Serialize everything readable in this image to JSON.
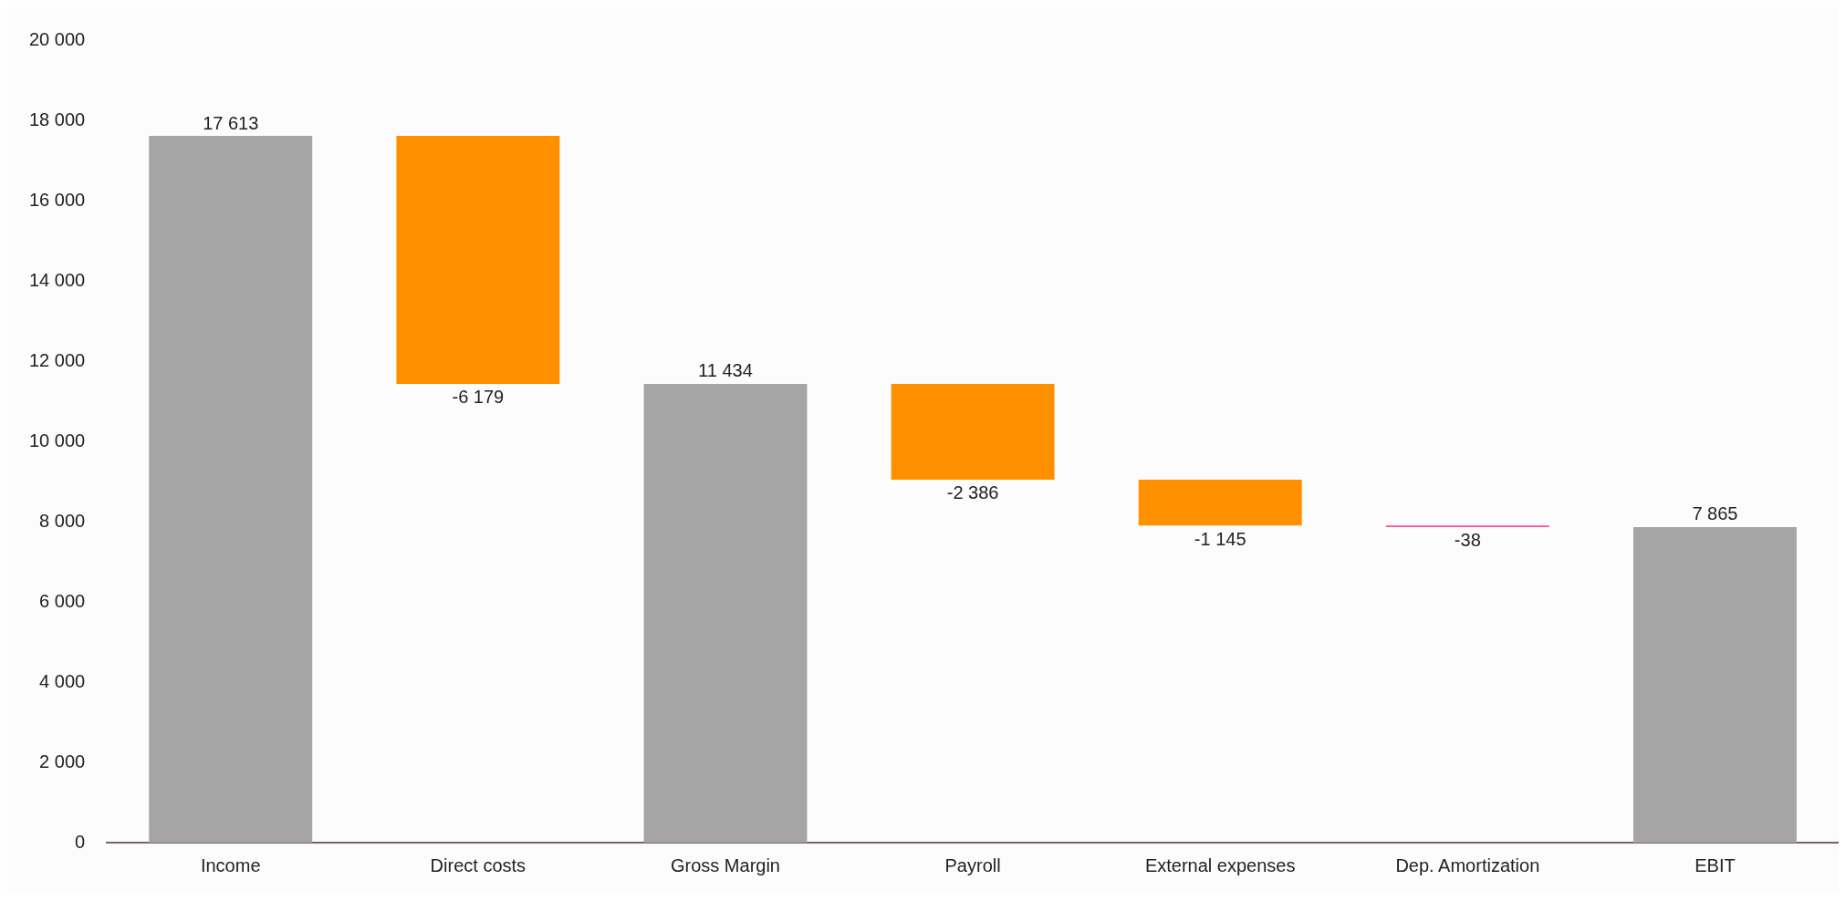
{
  "chart_data": {
    "type": "bar",
    "categories": [
      "Income",
      "Direct costs",
      "Gross Margin",
      "Payroll",
      "External expenses",
      "Dep. Amortization",
      "EBIT"
    ],
    "values": [
      17613,
      -6179,
      11434,
      -2386,
      -1145,
      -38,
      7865
    ],
    "base": [
      0,
      17613,
      0,
      11434,
      9048,
      7903,
      0
    ],
    "colors": [
      "#a5a5a5",
      "#ff9000",
      "#a5a5a5",
      "#ff9000",
      "#ff9000",
      "#ff4fa0",
      "#a5a5a5"
    ],
    "value_labels": [
      "17 613",
      "-6 179",
      "11 434",
      "-2 386",
      "-1 145",
      "-38",
      "7 865"
    ],
    "ylim": [
      0,
      20000
    ],
    "yticks": [
      0,
      {
        "value": 2000,
        "label": "2 000"
      },
      {
        "value": 4000,
        "label": "4 000"
      },
      {
        "value": 6000,
        "label": "6 000"
      },
      {
        "value": 8000,
        "label": "8 000"
      },
      {
        "value": 10000,
        "label": "10 000"
      },
      {
        "value": 12000,
        "label": "12 000"
      },
      {
        "value": 14000,
        "label": "14 000"
      },
      {
        "value": 16000,
        "label": "16 000"
      },
      {
        "value": 18000,
        "label": "18 000"
      },
      {
        "value": 20000,
        "label": "20 000"
      }
    ],
    "grid": false,
    "legend": false
  }
}
